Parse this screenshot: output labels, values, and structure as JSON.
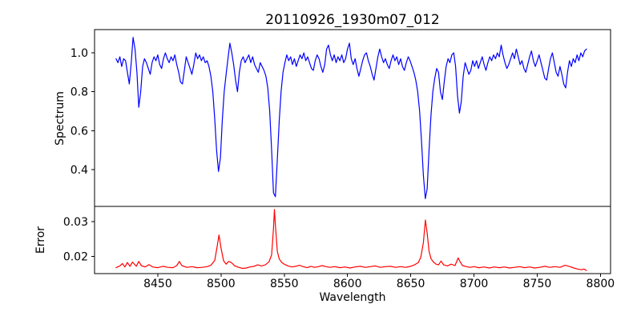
{
  "background": "#ffffff",
  "axes_color": "#000000",
  "chart_data": [
    {
      "type": "line",
      "panel": "spectrum",
      "title": "20110926_1930m07_012",
      "ylabel": "Spectrum",
      "line_color": "#0000ff",
      "xlim": [
        8400,
        8808
      ],
      "ylim": [
        0.21,
        1.12
      ],
      "yticks": {
        "values": [
          0.4,
          0.6,
          0.8,
          1.0
        ],
        "labels": [
          "0.4",
          "0.6",
          "0.8",
          "1.0"
        ]
      },
      "x_start": 8417,
      "x_step": 1.5,
      "values": [
        0.97,
        0.95,
        0.98,
        0.93,
        0.97,
        0.96,
        0.9,
        0.84,
        0.95,
        1.08,
        1.02,
        0.9,
        0.72,
        0.8,
        0.93,
        0.97,
        0.95,
        0.92,
        0.89,
        0.95,
        0.98,
        0.96,
        0.99,
        0.94,
        0.92,
        0.97,
        1.0,
        0.97,
        0.95,
        0.98,
        0.96,
        0.99,
        0.94,
        0.9,
        0.85,
        0.84,
        0.91,
        0.98,
        0.95,
        0.92,
        0.89,
        0.94,
        1.0,
        0.97,
        0.99,
        0.96,
        0.98,
        0.95,
        0.96,
        0.93,
        0.88,
        0.8,
        0.66,
        0.5,
        0.39,
        0.46,
        0.65,
        0.8,
        0.89,
        0.97,
        1.05,
        1.0,
        0.94,
        0.86,
        0.8,
        0.9,
        0.96,
        0.98,
        0.95,
        0.97,
        0.99,
        0.95,
        0.98,
        0.94,
        0.92,
        0.9,
        0.95,
        0.93,
        0.91,
        0.88,
        0.82,
        0.7,
        0.5,
        0.28,
        0.26,
        0.45,
        0.65,
        0.8,
        0.9,
        0.95,
        0.99,
        0.96,
        0.98,
        0.94,
        0.97,
        0.93,
        0.96,
        0.99,
        0.97,
        1.0,
        0.96,
        0.98,
        0.95,
        0.92,
        0.91,
        0.96,
        0.99,
        0.97,
        0.93,
        0.9,
        0.94,
        1.02,
        1.04,
        0.99,
        0.96,
        0.99,
        0.95,
        0.98,
        0.96,
        0.99,
        0.95,
        0.97,
        1.02,
        1.05,
        0.97,
        0.94,
        0.97,
        0.92,
        0.88,
        0.92,
        0.96,
        0.99,
        1.0,
        0.96,
        0.93,
        0.89,
        0.86,
        0.92,
        0.98,
        1.02,
        0.98,
        0.95,
        0.97,
        0.94,
        0.92,
        0.96,
        0.99,
        0.96,
        0.98,
        0.94,
        0.97,
        0.93,
        0.91,
        0.95,
        0.98,
        0.96,
        0.93,
        0.9,
        0.86,
        0.8,
        0.7,
        0.55,
        0.37,
        0.25,
        0.3,
        0.5,
        0.68,
        0.8,
        0.87,
        0.92,
        0.9,
        0.8,
        0.76,
        0.85,
        0.93,
        0.97,
        0.95,
        0.99,
        1.0,
        0.93,
        0.78,
        0.69,
        0.75,
        0.88,
        0.95,
        0.92,
        0.89,
        0.91,
        0.96,
        0.93,
        0.96,
        0.92,
        0.95,
        0.98,
        0.94,
        0.91,
        0.95,
        0.98,
        0.96,
        0.99,
        0.97,
        1.0,
        0.98,
        1.04,
        0.99,
        0.95,
        0.92,
        0.94,
        0.97,
        1.0,
        0.97,
        1.02,
        0.98,
        0.94,
        0.96,
        0.92,
        0.9,
        0.94,
        0.98,
        1.01,
        0.96,
        0.93,
        0.96,
        0.99,
        0.95,
        0.91,
        0.87,
        0.86,
        0.92,
        0.97,
        1.0,
        0.95,
        0.9,
        0.88,
        0.93,
        0.89,
        0.84,
        0.82,
        0.9,
        0.96,
        0.93,
        0.97,
        0.95,
        0.99,
        0.96,
        1.0,
        0.98,
        1.01,
        1.02
      ]
    },
    {
      "type": "line",
      "panel": "error",
      "xlabel": "Wavelength",
      "ylabel": "Error",
      "line_color": "#ff0000",
      "xlim": [
        8400,
        8808
      ],
      "ylim": [
        0.0151,
        0.0344
      ],
      "xticks": {
        "values": [
          8450,
          8500,
          8550,
          8600,
          8650,
          8700,
          8750,
          8800
        ],
        "labels": [
          "8450",
          "8500",
          "8550",
          "8600",
          "8650",
          "8700",
          "8750",
          "8800"
        ]
      },
      "yticks": {
        "values": [
          0.02,
          0.03
        ],
        "labels": [
          "0.02",
          "0.03"
        ]
      },
      "points": [
        [
          8417,
          0.0168
        ],
        [
          8420,
          0.0173
        ],
        [
          8422,
          0.018
        ],
        [
          8424,
          0.017
        ],
        [
          8426,
          0.0183
        ],
        [
          8428,
          0.0172
        ],
        [
          8430,
          0.0184
        ],
        [
          8433,
          0.0172
        ],
        [
          8435,
          0.0186
        ],
        [
          8437,
          0.0174
        ],
        [
          8440,
          0.017
        ],
        [
          8443,
          0.0177
        ],
        [
          8446,
          0.017
        ],
        [
          8450,
          0.0168
        ],
        [
          8454,
          0.0172
        ],
        [
          8458,
          0.0169
        ],
        [
          8462,
          0.0168
        ],
        [
          8465,
          0.0174
        ],
        [
          8467,
          0.0186
        ],
        [
          8469,
          0.0174
        ],
        [
          8473,
          0.0169
        ],
        [
          8477,
          0.0171
        ],
        [
          8481,
          0.0168
        ],
        [
          8485,
          0.0169
        ],
        [
          8489,
          0.0171
        ],
        [
          8492,
          0.0175
        ],
        [
          8495,
          0.0189
        ],
        [
          8497,
          0.023
        ],
        [
          8498.4,
          0.0262
        ],
        [
          8500,
          0.0225
        ],
        [
          8502,
          0.0188
        ],
        [
          8504,
          0.0178
        ],
        [
          8506,
          0.0186
        ],
        [
          8508,
          0.0183
        ],
        [
          8511,
          0.0173
        ],
        [
          8514,
          0.0169
        ],
        [
          8517,
          0.0166
        ],
        [
          8520,
          0.0167
        ],
        [
          8523,
          0.017
        ],
        [
          8526,
          0.0172
        ],
        [
          8529,
          0.0176
        ],
        [
          8532,
          0.0173
        ],
        [
          8535,
          0.0176
        ],
        [
          8538,
          0.0185
        ],
        [
          8540,
          0.0205
        ],
        [
          8541.5,
          0.028
        ],
        [
          8542.2,
          0.0335
        ],
        [
          8543,
          0.029
        ],
        [
          8544.5,
          0.0215
        ],
        [
          8546,
          0.0193
        ],
        [
          8548,
          0.0183
        ],
        [
          8550,
          0.0178
        ],
        [
          8553,
          0.0173
        ],
        [
          8556,
          0.017
        ],
        [
          8559,
          0.0172
        ],
        [
          8562,
          0.0175
        ],
        [
          8565,
          0.0171
        ],
        [
          8568,
          0.0168
        ],
        [
          8571,
          0.0172
        ],
        [
          8574,
          0.0169
        ],
        [
          8577,
          0.0171
        ],
        [
          8580,
          0.0174
        ],
        [
          8583,
          0.0171
        ],
        [
          8586,
          0.0169
        ],
        [
          8590,
          0.0171
        ],
        [
          8594,
          0.0168
        ],
        [
          8598,
          0.017
        ],
        [
          8602,
          0.0167
        ],
        [
          8606,
          0.017
        ],
        [
          8610,
          0.0172
        ],
        [
          8614,
          0.0169
        ],
        [
          8618,
          0.0171
        ],
        [
          8622,
          0.0173
        ],
        [
          8626,
          0.0169
        ],
        [
          8630,
          0.0171
        ],
        [
          8634,
          0.0172
        ],
        [
          8638,
          0.0169
        ],
        [
          8642,
          0.0171
        ],
        [
          8646,
          0.0169
        ],
        [
          8650,
          0.0172
        ],
        [
          8653,
          0.0176
        ],
        [
          8656,
          0.0183
        ],
        [
          8658,
          0.0198
        ],
        [
          8660,
          0.024
        ],
        [
          8661.6,
          0.0305
        ],
        [
          8663,
          0.0268
        ],
        [
          8664.5,
          0.0215
        ],
        [
          8666,
          0.0194
        ],
        [
          8668,
          0.0184
        ],
        [
          8670,
          0.0178
        ],
        [
          8672,
          0.0176
        ],
        [
          8674,
          0.0187
        ],
        [
          8676,
          0.0176
        ],
        [
          8679,
          0.0173
        ],
        [
          8682,
          0.0178
        ],
        [
          8685,
          0.0174
        ],
        [
          8687.5,
          0.0196
        ],
        [
          8689,
          0.0185
        ],
        [
          8691,
          0.0174
        ],
        [
          8694,
          0.0171
        ],
        [
          8697,
          0.0169
        ],
        [
          8700,
          0.0171
        ],
        [
          8704,
          0.0168
        ],
        [
          8708,
          0.017
        ],
        [
          8712,
          0.0167
        ],
        [
          8716,
          0.017
        ],
        [
          8720,
          0.0168
        ],
        [
          8724,
          0.017
        ],
        [
          8728,
          0.0167
        ],
        [
          8732,
          0.0169
        ],
        [
          8736,
          0.0171
        ],
        [
          8740,
          0.0168
        ],
        [
          8744,
          0.017
        ],
        [
          8748,
          0.0167
        ],
        [
          8752,
          0.0169
        ],
        [
          8756,
          0.0172
        ],
        [
          8760,
          0.0169
        ],
        [
          8764,
          0.0171
        ],
        [
          8768,
          0.0169
        ],
        [
          8772,
          0.0175
        ],
        [
          8776,
          0.0171
        ],
        [
          8779,
          0.0167
        ],
        [
          8782,
          0.0164
        ],
        [
          8785,
          0.0162
        ],
        [
          8787,
          0.0164
        ],
        [
          8789,
          0.016
        ]
      ]
    }
  ]
}
